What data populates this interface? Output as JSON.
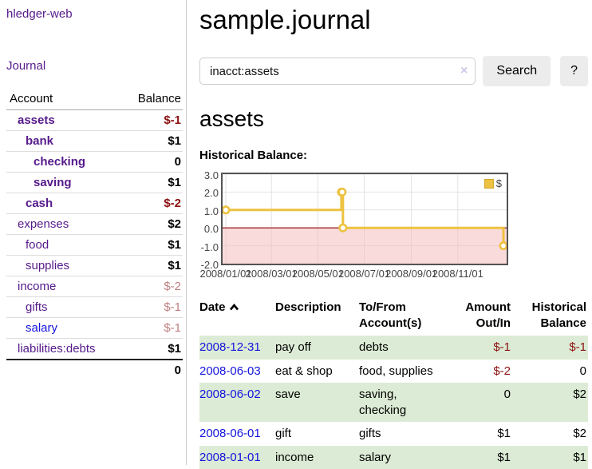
{
  "app": {
    "brand": "hledger-web",
    "nav": {
      "journal_label": "Journal"
    }
  },
  "colors": {
    "link_purple": "#551A8B",
    "link_blue": "#1414DD",
    "negative_strong": "#8B1111",
    "negative_soft": "#C08080",
    "row_stripe_green": "#DCEBD5",
    "series_yellow": "#EDC240"
  },
  "sidebar": {
    "table": {
      "account_header": "Account",
      "balance_header": "Balance",
      "rows": [
        {
          "account": "assets",
          "balance": "$-1",
          "indent": 1,
          "bold": true,
          "tone": "neg"
        },
        {
          "account": "bank",
          "balance": "$1",
          "indent": 2,
          "bold": true,
          "tone": "pos"
        },
        {
          "account": "checking",
          "balance": "0",
          "indent": 3,
          "bold": true,
          "tone": "pos"
        },
        {
          "account": "saving",
          "balance": "$1",
          "indent": 3,
          "bold": true,
          "tone": "pos"
        },
        {
          "account": "cash",
          "balance": "$-2",
          "indent": 2,
          "bold": true,
          "tone": "neg"
        },
        {
          "account": "expenses",
          "balance": "$2",
          "indent": 1,
          "bold": false,
          "tone": "pos"
        },
        {
          "account": "food",
          "balance": "$1",
          "indent": 2,
          "bold": false,
          "tone": "pos"
        },
        {
          "account": "supplies",
          "balance": "$1",
          "indent": 2,
          "bold": false,
          "tone": "pos"
        },
        {
          "account": "income",
          "balance": "$-2",
          "indent": 1,
          "bold": false,
          "tone": "negsoft"
        },
        {
          "account": "gifts",
          "balance": "$-1",
          "indent": 2,
          "bold": false,
          "tone": "negsoft"
        },
        {
          "account": "salary",
          "balance": "$-1",
          "indent": 2,
          "bold": false,
          "tone": "negsoft",
          "link_blue": true
        },
        {
          "account": "liabilities:debts",
          "balance": "$1",
          "indent": 1,
          "bold": false,
          "tone": "pos"
        }
      ],
      "total": "0"
    }
  },
  "main": {
    "title": "sample.journal",
    "search": {
      "value": "inacct:assets",
      "clear_icon": "×",
      "search_label": "Search",
      "help_label": "?"
    },
    "account_heading": "assets",
    "chart_heading": "Historical Balance:"
  },
  "chart_data": {
    "type": "line",
    "step": true,
    "title": "Historical Balance",
    "series": [
      {
        "name": "$",
        "color": "#EDC240",
        "points": [
          [
            "2008-01-01",
            1.0
          ],
          [
            "2008-06-01",
            2.0
          ],
          [
            "2008-06-02",
            2.0
          ],
          [
            "2008-06-03",
            0.0
          ],
          [
            "2008-12-31",
            -1.0
          ]
        ]
      }
    ],
    "x_range": [
      "2008-01-01",
      "2008-12-31"
    ],
    "ylim": [
      -2.0,
      3.0
    ],
    "yticks": [
      3.0,
      2.0,
      1.0,
      0.0,
      -1.0,
      -2.0
    ],
    "xticks": [
      {
        "date": "2008-01-01",
        "label": "2008/01/01"
      },
      {
        "date": "2008-03-01",
        "label": "2008/03/01"
      },
      {
        "date": "2008-05-01",
        "label": "2008/05/01"
      },
      {
        "date": "2008-07-01",
        "label": "2008/07/01"
      },
      {
        "date": "2008-09-01",
        "label": "2008/09/01"
      },
      {
        "date": "2008-11-01",
        "label": "2008/11/01"
      }
    ],
    "grid": true,
    "negative_region_color": "#F5BEBE",
    "zero_line_color": "#8B0000",
    "legend": {
      "position": "top-right",
      "entries": [
        {
          "label": "$",
          "color": "#EDC240"
        }
      ]
    }
  },
  "register_table": {
    "columns": [
      {
        "label": "Date",
        "align": "left",
        "sorted": "asc"
      },
      {
        "label": "Description",
        "align": "left"
      },
      {
        "label": "To/From Account(s)",
        "align": "left"
      },
      {
        "label": "Amount Out/In",
        "align": "right"
      },
      {
        "label": "Historical Balance",
        "align": "right"
      }
    ],
    "rows": [
      {
        "date": "2008-12-31",
        "description": "pay off",
        "accounts": "debts",
        "amount": "$-1",
        "amount_tone": "neg",
        "balance": "$-1",
        "balance_tone": "neg"
      },
      {
        "date": "2008-06-03",
        "description": "eat & shop",
        "accounts": "food, supplies",
        "amount": "$-2",
        "amount_tone": "neg",
        "balance": "0",
        "balance_tone": "pos"
      },
      {
        "date": "2008-06-02",
        "description": "save",
        "accounts": "saving, checking",
        "amount": "0",
        "amount_tone": "pos",
        "balance": "$2",
        "balance_tone": "pos"
      },
      {
        "date": "2008-06-01",
        "description": "gift",
        "accounts": "gifts",
        "amount": "$1",
        "amount_tone": "pos",
        "balance": "$2",
        "balance_tone": "pos"
      },
      {
        "date": "2008-01-01",
        "description": "income",
        "accounts": "salary",
        "amount": "$1",
        "amount_tone": "pos",
        "balance": "$1",
        "balance_tone": "pos"
      }
    ]
  }
}
